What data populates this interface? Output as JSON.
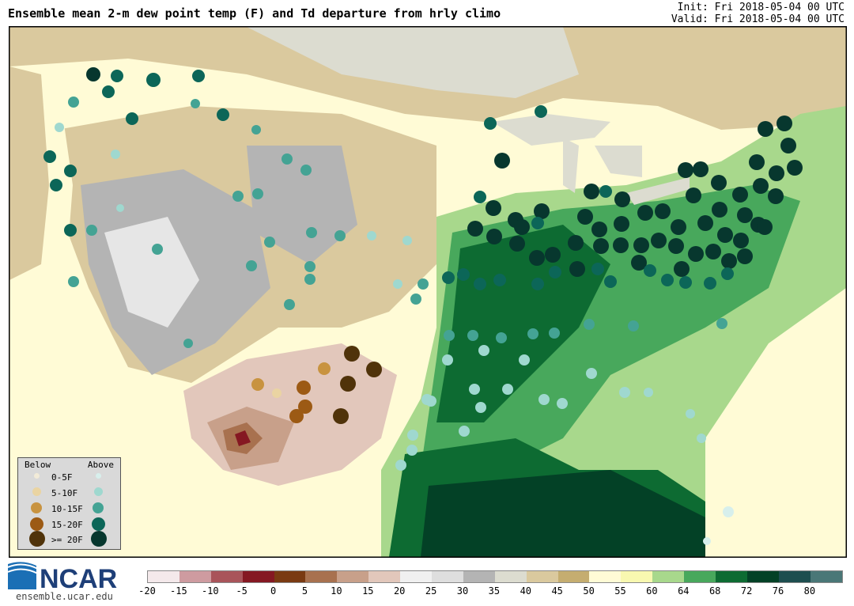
{
  "title": "Ensemble mean 2-m dew point temp (F) and Td departure from hrly climo",
  "init": "Init: Fri 2018-05-04 00 UTC",
  "valid": "Valid: Fri 2018-05-04 00 UTC",
  "legend": {
    "below": "Below",
    "above": "Above",
    "rows": [
      {
        "label": "0-5F",
        "below_color": "#f2ebd8",
        "above_color": "#d7efec"
      },
      {
        "label": "5-10F",
        "below_color": "#ead4a2",
        "above_color": "#9fd8cf"
      },
      {
        "label": "10-15F",
        "below_color": "#c89340",
        "above_color": "#44a394"
      },
      {
        "label": "15-20F",
        "below_color": "#9c5a14",
        "above_color": "#0c6658"
      },
      {
        "label": ">= 20F",
        "below_color": "#50330a",
        "above_color": "#07372e"
      }
    ]
  },
  "colorbar": {
    "ticks": [
      "-20",
      "-15",
      "-10",
      "-5",
      "0",
      "5",
      "10",
      "15",
      "20",
      "25",
      "30",
      "35",
      "40",
      "45",
      "50",
      "55",
      "60",
      "64",
      "68",
      "72",
      "76",
      "80"
    ],
    "colors": [
      "#f4e9eb",
      "#ce9ba0",
      "#a9545a",
      "#851822",
      "#7a3a12",
      "#a8714f",
      "#c8a08a",
      "#e2c7bb",
      "#f0f0f0",
      "#dedede",
      "#b4b4b4",
      "#dcdcd0",
      "#dac99e",
      "#c5ad70",
      "#fffbd6",
      "#f8f8b0",
      "#a8d88c",
      "#48a85c",
      "#0d6b32",
      "#034126",
      "#1d4e4f",
      "#4a7777"
    ]
  },
  "logo": {
    "name": "NCAR",
    "url": "ensemble.ucar.edu"
  }
}
